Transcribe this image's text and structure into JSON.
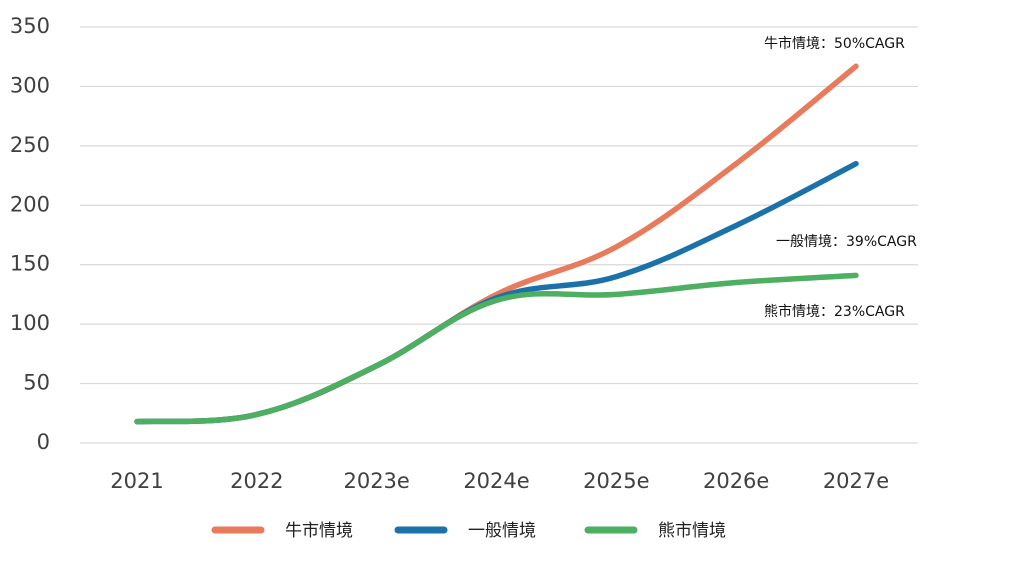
{
  "chart_data": {
    "type": "line",
    "x": [
      "2021",
      "2022",
      "2023e",
      "2024e",
      "2025e",
      "2026e",
      "2027e"
    ],
    "ylim": [
      0,
      350
    ],
    "yticks": [
      0,
      50,
      100,
      150,
      200,
      250,
      300,
      350
    ],
    "grid": true,
    "legend_position": "bottom",
    "series": [
      {
        "name": "牛市情境",
        "color": "#E87B5B",
        "values": [
          18,
          24,
          65,
          125,
          165,
          235,
          317
        ]
      },
      {
        "name": "一般情境",
        "color": "#1A72A8",
        "values": [
          18,
          24,
          65,
          122,
          140,
          183,
          235
        ]
      },
      {
        "name": "熊市情境",
        "color": "#4CAF61",
        "values": [
          18,
          24,
          65,
          120,
          125,
          135,
          141
        ]
      }
    ],
    "annotations": [
      {
        "text": "牛市情境：50%CAGR",
        "series": 0
      },
      {
        "text": "一般情境：39%CAGR",
        "series": 1
      },
      {
        "text": "熊市情境：23%CAGR",
        "series": 2
      }
    ]
  }
}
